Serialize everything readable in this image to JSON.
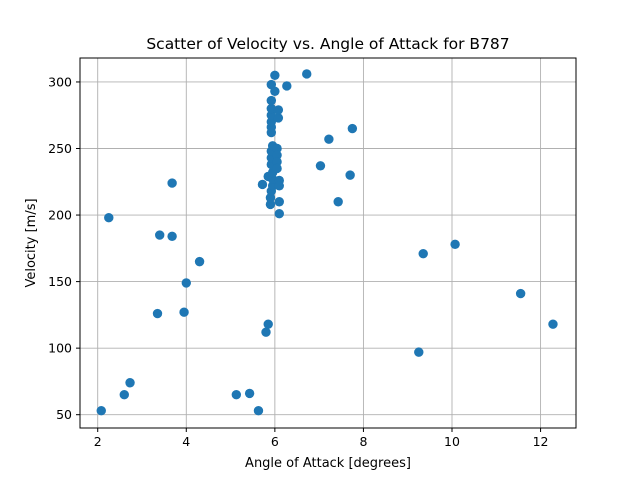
{
  "chart_data": {
    "type": "scatter",
    "title": "Scatter of Velocity vs. Angle of Attack for B787",
    "xlabel": "Angle of Attack [degrees]",
    "ylabel": "Velocity [m/s]",
    "xlim": [
      1.6,
      12.8
    ],
    "ylim": [
      40,
      318
    ],
    "xticks": [
      2,
      4,
      6,
      8,
      10,
      12
    ],
    "yticks": [
      50,
      100,
      150,
      200,
      250,
      300
    ],
    "grid": true,
    "color": "#1f77b4",
    "points": [
      {
        "x": 2.08,
        "y": 53
      },
      {
        "x": 2.25,
        "y": 198
      },
      {
        "x": 2.6,
        "y": 65
      },
      {
        "x": 2.73,
        "y": 74
      },
      {
        "x": 3.35,
        "y": 126
      },
      {
        "x": 3.4,
        "y": 185
      },
      {
        "x": 3.68,
        "y": 184
      },
      {
        "x": 3.68,
        "y": 224
      },
      {
        "x": 3.95,
        "y": 127
      },
      {
        "x": 4.0,
        "y": 149
      },
      {
        "x": 4.3,
        "y": 165
      },
      {
        "x": 5.13,
        "y": 65
      },
      {
        "x": 5.43,
        "y": 66
      },
      {
        "x": 5.63,
        "y": 53
      },
      {
        "x": 5.8,
        "y": 112
      },
      {
        "x": 5.85,
        "y": 118
      },
      {
        "x": 5.72,
        "y": 223
      },
      {
        "x": 5.85,
        "y": 229
      },
      {
        "x": 5.9,
        "y": 208
      },
      {
        "x": 5.9,
        "y": 213
      },
      {
        "x": 5.92,
        "y": 218
      },
      {
        "x": 5.95,
        "y": 222
      },
      {
        "x": 5.95,
        "y": 227
      },
      {
        "x": 5.95,
        "y": 232
      },
      {
        "x": 5.92,
        "y": 238
      },
      {
        "x": 5.92,
        "y": 243
      },
      {
        "x": 5.92,
        "y": 248
      },
      {
        "x": 5.95,
        "y": 252
      },
      {
        "x": 6.05,
        "y": 250
      },
      {
        "x": 6.05,
        "y": 245
      },
      {
        "x": 6.05,
        "y": 240
      },
      {
        "x": 6.05,
        "y": 235
      },
      {
        "x": 6.1,
        "y": 226
      },
      {
        "x": 6.1,
        "y": 222
      },
      {
        "x": 6.1,
        "y": 210
      },
      {
        "x": 6.1,
        "y": 201
      },
      {
        "x": 5.92,
        "y": 262
      },
      {
        "x": 5.92,
        "y": 266
      },
      {
        "x": 5.92,
        "y": 270
      },
      {
        "x": 5.92,
        "y": 275
      },
      {
        "x": 5.92,
        "y": 280
      },
      {
        "x": 5.92,
        "y": 286
      },
      {
        "x": 5.92,
        "y": 298
      },
      {
        "x": 6.0,
        "y": 293
      },
      {
        "x": 6.0,
        "y": 305
      },
      {
        "x": 6.08,
        "y": 273
      },
      {
        "x": 6.08,
        "y": 279
      },
      {
        "x": 6.27,
        "y": 297
      },
      {
        "x": 6.72,
        "y": 306
      },
      {
        "x": 7.03,
        "y": 237
      },
      {
        "x": 7.22,
        "y": 257
      },
      {
        "x": 7.43,
        "y": 210
      },
      {
        "x": 7.7,
        "y": 230
      },
      {
        "x": 7.75,
        "y": 265
      },
      {
        "x": 9.25,
        "y": 97
      },
      {
        "x": 9.35,
        "y": 171
      },
      {
        "x": 10.07,
        "y": 178
      },
      {
        "x": 11.55,
        "y": 141
      },
      {
        "x": 12.28,
        "y": 118
      }
    ]
  }
}
